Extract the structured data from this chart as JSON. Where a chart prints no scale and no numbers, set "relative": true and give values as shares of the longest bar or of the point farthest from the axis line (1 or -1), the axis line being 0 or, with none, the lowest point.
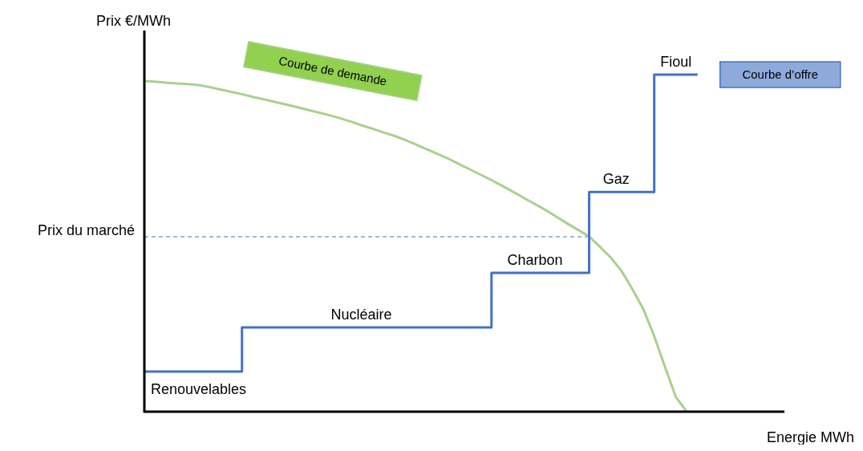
{
  "chart_data": {
    "type": "line",
    "relative": true,
    "xlabel": "Energie MWh",
    "ylabel": "Prix €/MWh",
    "legend": false,
    "categories": [
      null,
      null,
      null,
      null,
      null,
      null,
      null,
      null,
      null,
      null,
      null,
      null,
      null,
      null,
      null,
      null,
      null,
      null,
      null,
      null,
      null,
      null,
      null,
      null,
      null,
      null,
      null,
      null,
      null,
      null,
      null,
      null,
      null,
      null,
      null,
      null,
      null,
      null,
      null,
      null,
      null,
      null,
      null,
      null,
      null,
      null,
      null,
      null,
      null,
      null,
      null,
      null,
      null,
      null,
      null,
      null,
      null,
      null,
      null,
      null
    ],
    "series": [
      {
        "name": "Courbe de demande",
        "color": "#a9d18e",
        "values": [
          0.981,
          0.979,
          0.976,
          0.974,
          0.972,
          0.969,
          0.963,
          0.956,
          0.949,
          0.942,
          0.934,
          0.927,
          0.919,
          0.912,
          0.904,
          0.896,
          0.888,
          0.88,
          0.871,
          0.861,
          0.85,
          0.84,
          0.829,
          0.819,
          0.807,
          0.793,
          0.779,
          0.765,
          0.751,
          0.735,
          0.719,
          0.703,
          0.687,
          0.67,
          0.652,
          0.634,
          0.616,
          0.598,
          0.578,
          0.558,
          0.539,
          0.52,
          0.489,
          0.457,
          0.417,
          0.363,
          0.304,
          0.224,
          0.132,
          0.043,
          0,
          null,
          null,
          null,
          null,
          null,
          null,
          null,
          null,
          null
        ]
      },
      {
        "name": "Courbe d’offre",
        "color": "#4472c4",
        "type": "step",
        "values": [
          0.119,
          0.119,
          0.119,
          0.119,
          0.119,
          0.119,
          0.119,
          0.119,
          0.119,
          0.25,
          0.25,
          0.25,
          0.25,
          0.25,
          0.25,
          0.25,
          0.25,
          0.25,
          0.25,
          0.25,
          0.25,
          0.25,
          0.25,
          0.25,
          0.25,
          0.25,
          0.25,
          0.25,
          0.25,
          0.25,
          0.25,
          0.25,
          0.412,
          0.412,
          0.412,
          0.412,
          0.412,
          0.412,
          0.412,
          0.412,
          0.412,
          0.652,
          0.652,
          0.652,
          0.652,
          0.652,
          0.652,
          1,
          1,
          1,
          1,
          1,
          null,
          null,
          null,
          null,
          null,
          null,
          null,
          null
        ]
      }
    ],
    "ref_lines": [
      {
        "axis": "y",
        "value": 0.519,
        "label": "Prix du marché",
        "color": "#4472c4",
        "line_style": "dashed"
      }
    ],
    "annotations": [
      "Renouvelables",
      "Nucléaire",
      "Charbon",
      "Gaz",
      "Fioul"
    ]
  }
}
